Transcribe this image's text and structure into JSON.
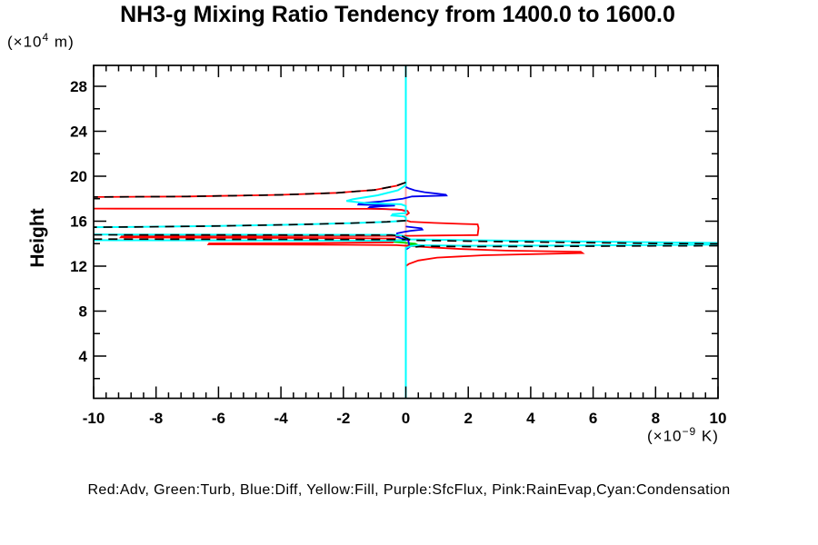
{
  "title": "NH3-g Mixing Ratio Tendency from 1400.0 to 1600.0",
  "legend_text": "Red:Adv, Green:Turb, Blue:Diff, Yellow:Fill, Purple:SfcFlux, Pink:RainEvap,Cyan:Condensation",
  "y_axis": {
    "label": "Height",
    "unit_prefix": "(×10",
    "unit_sup": "4",
    "unit_suffix": " m)"
  },
  "x_axis": {
    "unit_prefix": "(×10",
    "unit_sup": "−9",
    "unit_suffix": " K)"
  },
  "colors": {
    "red": "#ff0000",
    "green": "#00d400",
    "blue": "#0000ee",
    "yellow": "#ffff00",
    "purple": "#aa00ff",
    "pink": "#ffaaaa",
    "cyan": "#00ffff",
    "black": "#000000"
  },
  "chart_data": {
    "type": "line",
    "title": "NH3-g Mixing Ratio Tendency from 1400.0 to 1600.0",
    "xlabel": "(x10^-9 K)",
    "ylabel": "Height (x10^4 m)",
    "xlim": [
      -10,
      10
    ],
    "ylim": [
      0,
      30
    ],
    "x_ticks": [
      -10,
      -8,
      -6,
      -4,
      -2,
      0,
      2,
      4,
      6,
      8,
      10
    ],
    "x_tick_labels": [
      "-10",
      "-8",
      "-6",
      "-4",
      "-2",
      "0",
      "2",
      "4",
      "6",
      "8",
      "10"
    ],
    "x_minor_step": 0.4,
    "y_ticks": [
      4,
      8,
      12,
      16,
      20,
      24,
      28
    ],
    "y_tick_labels": [
      "4",
      "8",
      "12",
      "16",
      "20",
      "24",
      "28"
    ],
    "y_minor_step": 2,
    "grid": false,
    "legend_position": "bottom-text-line",
    "note": "vertical profiles: x = tendency (1e-9 K), y = height (1e4 m); values beyond +/-10 are clipped at plot edges",
    "series": [
      {
        "name": "Fill",
        "color": "yellow",
        "dash": false,
        "width": 2,
        "segments": [
          [
            [
              0,
              29.86
            ],
            [
              0,
              0.24
            ]
          ]
        ]
      },
      {
        "name": "SfcFlux",
        "color": "purple",
        "dash": false,
        "width": 2,
        "segments": [
          [
            [
              0,
              29.86
            ],
            [
              0,
              0.24
            ]
          ]
        ]
      },
      {
        "name": "RainEvap",
        "color": "pink",
        "dash": false,
        "width": 2,
        "segments": [
          [
            [
              0,
              29.86
            ],
            [
              0,
              0.24
            ]
          ]
        ]
      },
      {
        "name": "Turb",
        "color": "green",
        "dash": false,
        "width": 1.8,
        "segments": [
          [
            [
              0,
              14.34
            ],
            [
              -0.45,
              14.27
            ],
            [
              -0.5,
              14.18
            ],
            [
              -0.12,
              14.1
            ],
            [
              0.3,
              14.0
            ],
            [
              0.35,
              13.92
            ],
            [
              0.05,
              13.84
            ]
          ]
        ]
      },
      {
        "name": "Diff",
        "color": "blue",
        "dash": false,
        "width": 1.8,
        "segments": [
          [
            [
              0,
              19.05
            ],
            [
              0.1,
              18.92
            ],
            [
              0.28,
              18.75
            ],
            [
              0.6,
              18.58
            ],
            [
              1.0,
              18.45
            ],
            [
              1.28,
              18.36
            ],
            [
              1.3,
              18.28
            ],
            [
              0.7,
              18.24
            ],
            [
              0.2,
              18.2
            ],
            [
              -0.1,
              18.0
            ],
            [
              -0.8,
              17.75
            ],
            [
              -1.5,
              17.58
            ],
            [
              -1.52,
              17.47
            ],
            [
              -0.8,
              17.42
            ],
            [
              -0.35,
              17.38
            ],
            [
              -1.15,
              17.28
            ],
            [
              -1.2,
              17.16
            ],
            [
              -0.5,
              17.06
            ],
            [
              -0.12,
              17.0
            ],
            [
              0,
              16.88
            ]
          ],
          [
            [
              0,
              15.52
            ],
            [
              0.25,
              15.44
            ],
            [
              0.5,
              15.36
            ],
            [
              0.53,
              15.25
            ],
            [
              0.15,
              15.14
            ],
            [
              -0.05,
              15.05
            ],
            [
              -0.28,
              14.92
            ],
            [
              -0.3,
              14.6
            ],
            [
              -0.1,
              14.45
            ],
            [
              0.08,
              14.3
            ],
            [
              0.1,
              14.0
            ],
            [
              0.12,
              13.7
            ],
            [
              0.02,
              13.5
            ]
          ]
        ]
      },
      {
        "name": "Adv",
        "color": "red",
        "dash": false,
        "width": 1.8,
        "segments": [
          [
            [
              0,
              19.45
            ],
            [
              -0.3,
              19.15
            ],
            [
              -1.0,
              18.78
            ],
            [
              -2.2,
              18.52
            ],
            [
              -4,
              18.34
            ],
            [
              -7,
              18.2
            ],
            [
              -12,
              18.12
            ]
          ],
          [
            [
              -12,
              17.12
            ],
            [
              -1.2,
              17.1
            ],
            [
              -0.3,
              17.05
            ],
            [
              0.05,
              16.92
            ],
            [
              0.1,
              16.72
            ],
            [
              0.02,
              16.55
            ]
          ],
          [
            [
              0,
              16.08
            ],
            [
              0.15,
              15.95
            ],
            [
              0.9,
              15.85
            ],
            [
              1.8,
              15.76
            ],
            [
              2.3,
              15.72
            ],
            [
              2.33,
              15.4
            ],
            [
              2.3,
              14.76
            ],
            [
              1.2,
              14.73
            ],
            [
              0.1,
              14.7
            ],
            [
              -2,
              14.68
            ],
            [
              -9.1,
              14.65
            ],
            [
              -9.13,
              14.56
            ],
            [
              -2,
              14.5
            ],
            [
              -0.35,
              14.46
            ],
            [
              -0.42,
              14.12
            ],
            [
              -3,
              14.05
            ],
            [
              -6.3,
              14.02
            ],
            [
              -6.32,
              13.94
            ],
            [
              -2,
              13.9
            ],
            [
              -0.3,
              13.87
            ],
            [
              0.12,
              13.79
            ],
            [
              0.8,
              13.67
            ],
            [
              1.8,
              13.52
            ],
            [
              3.2,
              13.38
            ],
            [
              5.6,
              13.28
            ],
            [
              5.66,
              13.16
            ],
            [
              2.5,
              12.97
            ],
            [
              1.0,
              12.76
            ],
            [
              0.4,
              12.5
            ],
            [
              0.1,
              12.2
            ],
            [
              0,
              12.0
            ]
          ]
        ]
      },
      {
        "name": "Condensation",
        "color": "cyan",
        "dash": false,
        "width": 2,
        "segments": [
          [
            [
              0,
              29.86
            ],
            [
              0,
              19.2
            ],
            [
              -0.25,
              18.75
            ],
            [
              -0.9,
              18.3
            ],
            [
              -1.7,
              17.95
            ],
            [
              -1.9,
              17.8
            ],
            [
              -1.3,
              17.62
            ],
            [
              -0.15,
              17.5
            ],
            [
              0,
              17.35
            ],
            [
              0,
              16.72
            ],
            [
              -0.42,
              16.62
            ],
            [
              -0.45,
              16.5
            ],
            [
              -0.05,
              16.42
            ],
            [
              0,
              16.3
            ],
            [
              0,
              16.05
            ],
            [
              -0.6,
              15.94
            ],
            [
              -1.8,
              15.82
            ],
            [
              -3.5,
              15.7
            ],
            [
              -6,
              15.57
            ],
            [
              -8.5,
              15.49
            ],
            [
              -12,
              15.43
            ]
          ],
          [
            [
              -12,
              14.82
            ],
            [
              -0.45,
              14.79
            ],
            [
              -0.12,
              14.72
            ],
            [
              0.15,
              14.38
            ],
            [
              2,
              14.3
            ],
            [
              5,
              14.22
            ],
            [
              8,
              14.12
            ],
            [
              10.5,
              14.05
            ]
          ],
          [
            [
              -12,
              14.32
            ],
            [
              0,
              14.26
            ]
          ],
          [
            [
              10.5,
              13.92
            ],
            [
              8,
              13.88
            ],
            [
              5,
              13.84
            ],
            [
              2,
              13.82
            ],
            [
              0.4,
              13.86
            ],
            [
              0.15,
              13.78
            ],
            [
              0,
              13.62
            ],
            [
              0,
              0.24
            ]
          ]
        ]
      },
      {
        "name": "black_dashed_net",
        "color": "black",
        "dash": true,
        "width": 1.7,
        "segments": [
          [
            [
              0,
              19.45
            ],
            [
              -0.3,
              19.15
            ],
            [
              -1.0,
              18.78
            ],
            [
              -2.2,
              18.52
            ],
            [
              -4,
              18.34
            ],
            [
              -7,
              18.2
            ],
            [
              -12,
              18.12
            ]
          ],
          [
            [
              0,
              16.05
            ],
            [
              -0.6,
              15.94
            ],
            [
              -1.8,
              15.82
            ],
            [
              -3.5,
              15.7
            ],
            [
              -6,
              15.57
            ],
            [
              -8.5,
              15.49
            ],
            [
              -12,
              15.43
            ]
          ],
          [
            [
              -12,
              14.79
            ],
            [
              -0.45,
              14.76
            ],
            [
              -0.12,
              14.66
            ],
            [
              0.15,
              14.3
            ],
            [
              2,
              14.22
            ],
            [
              5,
              14.12
            ],
            [
              8,
              14.02
            ],
            [
              10.5,
              13.98
            ]
          ],
          [
            [
              -12,
              14.42
            ],
            [
              0,
              14.36
            ]
          ],
          [
            [
              10.5,
              13.82
            ],
            [
              8,
              13.8
            ],
            [
              5,
              13.76
            ],
            [
              2,
              13.74
            ],
            [
              0.5,
              13.78
            ],
            [
              0.3,
              13.7
            ],
            [
              0.2,
              13.56
            ]
          ]
        ]
      }
    ]
  }
}
